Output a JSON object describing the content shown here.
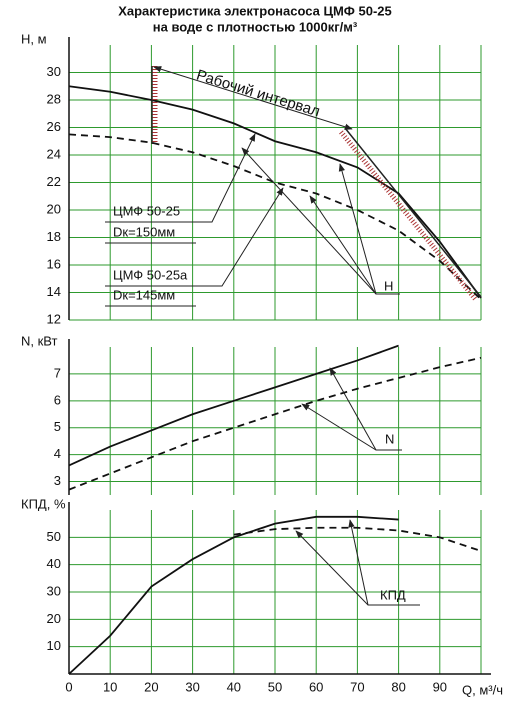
{
  "chart_data": [
    {
      "type": "line",
      "title": "Характеристика электронасоса ЦМФ 50-25",
      "subtitle": "на воде с плотностью 1000кг/м³",
      "ylabel": "H, м",
      "x": [
        0,
        10,
        20,
        30,
        40,
        50,
        60,
        70,
        80,
        90,
        100
      ],
      "ylim": [
        12,
        32
      ],
      "yticks": [
        12,
        14,
        16,
        18,
        20,
        22,
        24,
        26,
        28,
        30
      ],
      "grid": true,
      "grid_color": "#2e9a2e",
      "series": [
        {
          "color": "#111",
          "dash": false,
          "values": [
            29,
            28.6,
            28,
            27.3,
            26.3,
            25,
            24.2,
            23.1,
            21.2,
            17.7,
            13.6
          ]
        },
        {
          "color": "#111",
          "dash": true,
          "values": [
            25.5,
            25.3,
            24.9,
            24.2,
            23.2,
            22,
            21.2,
            20,
            18.5,
            16.3,
            13.5
          ]
        }
      ],
      "annotations": [
        "Рабочий интервал",
        "ЦМФ 50-25",
        "Dк=150мм",
        "ЦМФ 50-25а",
        "Dк=145мм",
        "H"
      ]
    },
    {
      "type": "line",
      "ylabel": "N, кВт",
      "x": [
        0,
        10,
        20,
        30,
        40,
        50,
        60,
        70,
        80,
        90,
        100
      ],
      "ylim": [
        2.5,
        8
      ],
      "yticks": [
        3,
        4,
        5,
        6,
        7
      ],
      "grid": true,
      "grid_color": "#2e9a2e",
      "series": [
        {
          "color": "#111",
          "dash": false,
          "values": [
            3.6,
            4.3,
            4.9,
            5.5,
            6.0,
            6.5,
            7.0,
            7.5,
            8.05,
            null,
            null
          ]
        },
        {
          "color": "#111",
          "dash": true,
          "values": [
            2.7,
            3.3,
            3.9,
            4.5,
            5.0,
            5.5,
            6.0,
            6.45,
            6.85,
            7.25,
            7.6
          ]
        }
      ],
      "annotations": [
        "N"
      ]
    },
    {
      "type": "line",
      "ylabel": "КПД, %",
      "xlabel": "Q, м³/ч",
      "x": [
        0,
        10,
        20,
        30,
        40,
        50,
        60,
        70,
        80,
        90,
        100
      ],
      "xlim": [
        0,
        100
      ],
      "xticks": [
        0,
        10,
        20,
        30,
        40,
        50,
        60,
        70,
        80,
        90
      ],
      "ylim": [
        0,
        60
      ],
      "yticks": [
        10,
        20,
        30,
        40,
        50
      ],
      "grid": true,
      "grid_color": "#2e9a2e",
      "series": [
        {
          "color": "#111",
          "dash": false,
          "values": [
            0,
            14,
            32,
            42,
            50,
            55,
            57.5,
            57.5,
            56.5,
            null,
            null
          ]
        },
        {
          "color": "#111",
          "dash": true,
          "values": [
            null,
            null,
            null,
            null,
            51,
            53,
            53.5,
            53.5,
            52.5,
            50,
            45
          ]
        }
      ],
      "annotations": [
        "КПД"
      ]
    }
  ]
}
